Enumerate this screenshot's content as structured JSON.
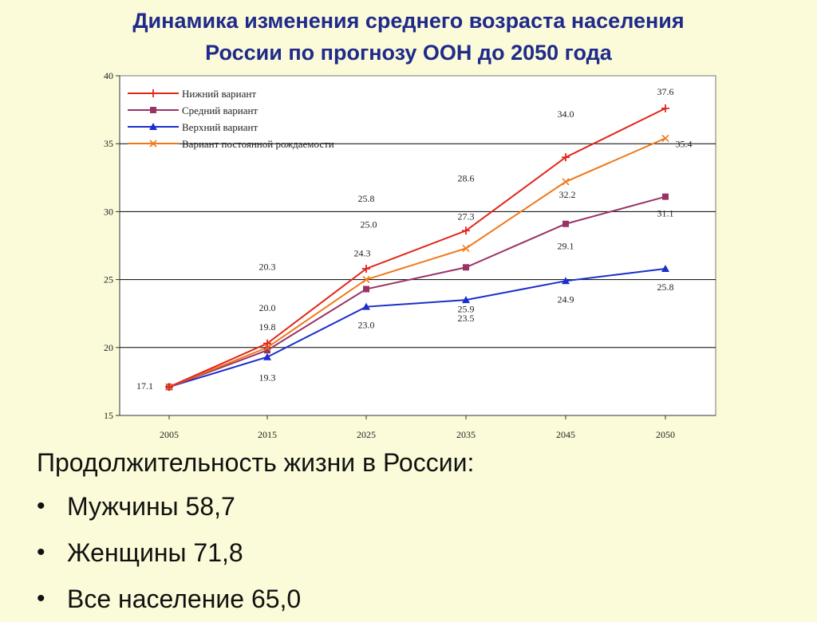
{
  "title": {
    "line1": "Динамика изменения среднего возраста населения",
    "line2": "России по прогнозу ООН до 2050 года"
  },
  "chart_data": {
    "type": "line",
    "categories": [
      "2005",
      "2015",
      "2025",
      "2035",
      "2045",
      "2050"
    ],
    "ylim": [
      15,
      40
    ],
    "yticks": [
      15,
      20,
      25,
      30,
      35,
      40
    ],
    "grid": "horizontal",
    "legend_position": "top-left",
    "series": [
      {
        "name": "Нижний вариант",
        "color": "#e32419",
        "marker": "plus",
        "values": [
          17.1,
          20.3,
          25.8,
          28.6,
          34.0,
          37.6
        ],
        "labels": [
          "17.1",
          "20.3",
          "25.8",
          "28.6",
          "34.0",
          "37.6"
        ]
      },
      {
        "name": "Средний вариант",
        "color": "#993366",
        "marker": "square",
        "values": [
          17.1,
          19.8,
          24.3,
          25.9,
          29.1,
          31.1
        ],
        "labels": [
          "",
          "19.8",
          "24.3",
          "25.9",
          "29.1",
          "31.1"
        ]
      },
      {
        "name": "Верхний вариант",
        "color": "#1a2ecc",
        "marker": "triangle",
        "values": [
          17.1,
          19.3,
          23.0,
          23.5,
          24.9,
          25.8
        ],
        "labels": [
          "",
          "19.3",
          "23.0",
          "23.5",
          "24.9",
          "25.8"
        ]
      },
      {
        "name": "Вариант постоянной рождаемости",
        "color": "#f07818",
        "marker": "x",
        "values": [
          17.1,
          20.0,
          25.0,
          27.3,
          32.2,
          35.4
        ],
        "labels": [
          "",
          "20.0",
          "25.0",
          "27.3",
          "32.2",
          "35.4"
        ]
      }
    ]
  },
  "info": {
    "title": "Продолжительность жизни в России:",
    "bullet": "•",
    "items": [
      {
        "text": "Мужчины 58,7"
      },
      {
        "text": "Женщины 71,8"
      },
      {
        "text": "Все население 65,0"
      }
    ]
  }
}
